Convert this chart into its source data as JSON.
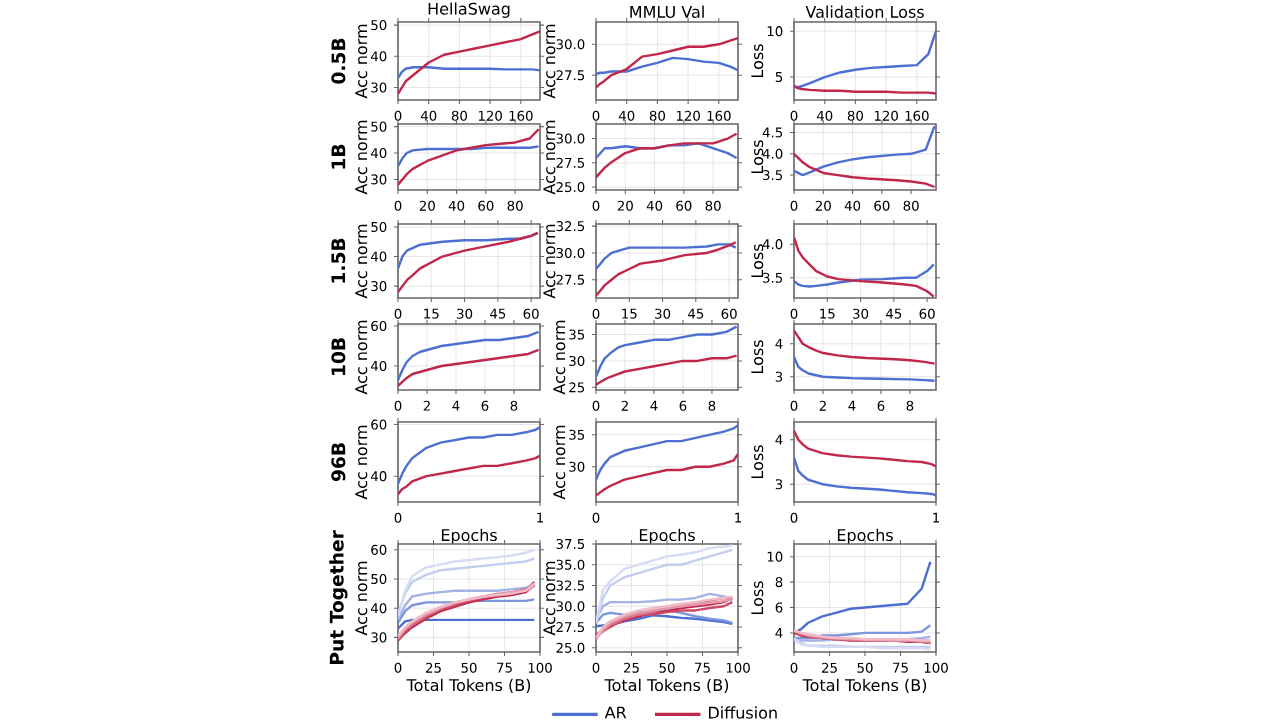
{
  "chart_data": [
    {
      "type": "line",
      "title": "HellaSwag",
      "ylabel": "Acc norm",
      "annotations": [
        "0.5B"
      ],
      "grid": true,
      "xlim": [
        0,
        185
      ],
      "xticks": [
        0,
        40,
        80,
        120,
        160
      ],
      "ylim": [
        26,
        51
      ],
      "yticks": [
        30,
        40,
        50
      ],
      "x": [
        0,
        5,
        10,
        20,
        40,
        60,
        80,
        100,
        120,
        140,
        160,
        175,
        185
      ],
      "series": [
        {
          "color": "#4c6fd1",
          "values": [
            33,
            35,
            36,
            36.5,
            36.5,
            36,
            36,
            36,
            36,
            35.8,
            35.8,
            35.8,
            35.5
          ]
        },
        {
          "color": "#c1274a",
          "values": [
            28,
            30,
            32,
            34,
            38,
            40.5,
            41.5,
            42.5,
            43.5,
            44.5,
            45.5,
            47,
            48
          ]
        }
      ]
    },
    {
      "type": "line",
      "title": "MMLU Val",
      "ylabel": "Acc norm",
      "grid": true,
      "xlim": [
        0,
        185
      ],
      "xticks": [
        0,
        40,
        80,
        120,
        160
      ],
      "ylim": [
        25.5,
        31.8
      ],
      "yticks": [
        27.5,
        {
          "value": 30,
          "label": "30.0"
        }
      ],
      "x": [
        0,
        5,
        10,
        20,
        40,
        60,
        80,
        100,
        120,
        140,
        160,
        175,
        185
      ],
      "series": [
        {
          "color": "#4c6fd1",
          "values": [
            27.6,
            27.7,
            27.7,
            27.8,
            27.8,
            28.2,
            28.5,
            28.9,
            28.8,
            28.6,
            28.5,
            28.2,
            27.9
          ]
        },
        {
          "color": "#c1274a",
          "values": [
            26.5,
            26.8,
            27.0,
            27.5,
            28.0,
            29.0,
            29.2,
            29.5,
            29.8,
            29.8,
            30.0,
            30.3,
            30.5
          ]
        }
      ]
    },
    {
      "type": "line",
      "title": "Validation Loss",
      "ylabel": "Loss",
      "grid": true,
      "xlim": [
        0,
        185
      ],
      "xticks": [
        0,
        40,
        80,
        120,
        160
      ],
      "ylim": [
        2.5,
        11
      ],
      "yticks": [
        5,
        10
      ],
      "x": [
        0,
        5,
        10,
        20,
        40,
        60,
        80,
        100,
        120,
        140,
        160,
        175,
        185
      ],
      "series": [
        {
          "color": "#4c6fd1",
          "values": [
            4.0,
            3.9,
            4.0,
            4.3,
            5.0,
            5.5,
            5.8,
            6.0,
            6.1,
            6.2,
            6.3,
            7.5,
            10.0
          ]
        },
        {
          "color": "#c1274a",
          "values": [
            4.0,
            3.8,
            3.7,
            3.6,
            3.5,
            3.5,
            3.4,
            3.4,
            3.4,
            3.3,
            3.3,
            3.3,
            3.2
          ]
        }
      ]
    },
    {
      "type": "line",
      "ylabel": "Acc norm",
      "annotations": [
        "1B"
      ],
      "grid": true,
      "xlim": [
        0,
        97
      ],
      "xticks": [
        0,
        20,
        40,
        60,
        80
      ],
      "ylim": [
        26,
        51
      ],
      "yticks": [
        30,
        40,
        50
      ],
      "x": [
        0,
        3,
        6,
        10,
        20,
        30,
        40,
        50,
        60,
        70,
        80,
        90,
        96
      ],
      "series": [
        {
          "color": "#4c6fd1",
          "values": [
            35,
            38,
            40,
            41,
            41.5,
            41.5,
            41.5,
            41.5,
            42,
            42,
            42,
            42,
            42.5
          ]
        },
        {
          "color": "#c1274a",
          "values": [
            28,
            30,
            32,
            34,
            37,
            39,
            41,
            42,
            43,
            43.5,
            44,
            45.5,
            49
          ]
        }
      ]
    },
    {
      "type": "line",
      "ylabel": "Acc norm",
      "grid": true,
      "xlim": [
        0,
        97
      ],
      "xticks": [
        0,
        20,
        40,
        60,
        80
      ],
      "ylim": [
        24.7,
        31.5
      ],
      "yticks": [
        {
          "value": 25,
          "label": "25.0"
        },
        27.5,
        {
          "value": 30,
          "label": "30.0"
        }
      ],
      "x": [
        0,
        3,
        6,
        10,
        20,
        30,
        40,
        50,
        60,
        70,
        80,
        90,
        96
      ],
      "series": [
        {
          "color": "#4c6fd1",
          "values": [
            28,
            28.5,
            29,
            29,
            29.2,
            29,
            29,
            29.3,
            29.3,
            29.5,
            29,
            28.5,
            28
          ]
        },
        {
          "color": "#c1274a",
          "values": [
            26,
            26.5,
            27,
            27.5,
            28.5,
            29,
            29,
            29.3,
            29.5,
            29.5,
            29.5,
            30,
            30.5
          ]
        }
      ]
    },
    {
      "type": "line",
      "ylabel": "Loss",
      "grid": true,
      "xlim": [
        0,
        97
      ],
      "xticks": [
        0,
        20,
        40,
        60,
        80
      ],
      "ylim": [
        3.15,
        4.7
      ],
      "yticks": [
        3.5,
        {
          "value": 4,
          "label": "4.0"
        },
        4.5
      ],
      "x": [
        0,
        3,
        6,
        10,
        20,
        30,
        40,
        50,
        60,
        70,
        80,
        90,
        96
      ],
      "series": [
        {
          "color": "#4c6fd1",
          "values": [
            3.6,
            3.55,
            3.5,
            3.55,
            3.7,
            3.8,
            3.87,
            3.92,
            3.95,
            3.98,
            4.0,
            4.1,
            4.65
          ]
        },
        {
          "color": "#c1274a",
          "values": [
            4.0,
            3.9,
            3.8,
            3.7,
            3.55,
            3.5,
            3.45,
            3.42,
            3.4,
            3.38,
            3.35,
            3.3,
            3.22
          ]
        }
      ]
    },
    {
      "type": "line",
      "ylabel": "Acc norm",
      "annotations": [
        "1.5B"
      ],
      "grid": true,
      "xlim": [
        0,
        64
      ],
      "xticks": [
        0,
        15,
        30,
        45,
        60
      ],
      "ylim": [
        26,
        51
      ],
      "yticks": [
        30,
        40,
        50
      ],
      "x": [
        0,
        2,
        4,
        7,
        10,
        15,
        20,
        30,
        40,
        50,
        55,
        60,
        63
      ],
      "series": [
        {
          "color": "#4c6fd1",
          "values": [
            36,
            40,
            42,
            43,
            44,
            44.5,
            45,
            45.5,
            45.5,
            46,
            46,
            47,
            48
          ]
        },
        {
          "color": "#c1274a",
          "values": [
            28,
            30,
            32,
            34,
            36,
            38,
            40,
            42,
            43.5,
            45,
            46,
            47,
            48
          ]
        }
      ]
    },
    {
      "type": "line",
      "ylabel": "Acc norm",
      "grid": true,
      "xlim": [
        0,
        64
      ],
      "xticks": [
        0,
        15,
        30,
        45,
        60
      ],
      "ylim": [
        25.8,
        32.7
      ],
      "yticks": [
        27.5,
        {
          "value": 30,
          "label": "30.0"
        },
        32.5
      ],
      "x": [
        0,
        2,
        4,
        7,
        10,
        15,
        20,
        30,
        40,
        50,
        55,
        60,
        63
      ],
      "series": [
        {
          "color": "#4c6fd1",
          "values": [
            28.5,
            29,
            29.5,
            30,
            30.2,
            30.5,
            30.5,
            30.5,
            30.5,
            30.6,
            30.8,
            30.8,
            30.5
          ]
        },
        {
          "color": "#c1274a",
          "values": [
            26,
            26.5,
            27,
            27.5,
            28,
            28.5,
            29,
            29.3,
            29.8,
            30,
            30.3,
            30.7,
            31
          ]
        }
      ]
    },
    {
      "type": "line",
      "ylabel": "Loss",
      "grid": true,
      "xlim": [
        0,
        64
      ],
      "xticks": [
        0,
        15,
        30,
        45,
        60
      ],
      "ylim": [
        3.2,
        4.3
      ],
      "yticks": [
        3.5,
        {
          "value": 4,
          "label": "4.0"
        }
      ],
      "x": [
        0,
        2,
        4,
        7,
        10,
        15,
        20,
        30,
        40,
        50,
        55,
        60,
        63
      ],
      "series": [
        {
          "color": "#4c6fd1",
          "values": [
            3.45,
            3.4,
            3.38,
            3.37,
            3.38,
            3.4,
            3.43,
            3.47,
            3.48,
            3.5,
            3.5,
            3.6,
            3.7
          ]
        },
        {
          "color": "#c1274a",
          "values": [
            4.1,
            3.9,
            3.8,
            3.7,
            3.6,
            3.52,
            3.48,
            3.45,
            3.43,
            3.4,
            3.38,
            3.3,
            3.22
          ]
        }
      ]
    },
    {
      "type": "line",
      "ylabel": "Acc norm",
      "annotations": [
        "10B"
      ],
      "grid": true,
      "xlim": [
        0,
        9.8
      ],
      "xticks": [
        0,
        2,
        4,
        6,
        8
      ],
      "ylim": [
        28,
        61
      ],
      "yticks": [
        40,
        60
      ],
      "x": [
        0,
        0.3,
        0.6,
        1,
        1.5,
        2,
        3,
        4,
        5,
        6,
        7,
        8,
        9,
        9.7
      ],
      "series": [
        {
          "color": "#4c6fd1",
          "values": [
            33,
            38,
            42,
            45,
            47,
            48,
            50,
            51,
            52,
            53,
            53,
            54,
            55,
            57
          ]
        },
        {
          "color": "#c1274a",
          "values": [
            30,
            32,
            34,
            36,
            37,
            38,
            40,
            41,
            42,
            43,
            44,
            45,
            46,
            48
          ]
        }
      ]
    },
    {
      "type": "line",
      "ylabel": "Acc norm",
      "grid": true,
      "xlim": [
        0,
        9.8
      ],
      "xticks": [
        0,
        2,
        4,
        6,
        8
      ],
      "ylim": [
        24.5,
        37
      ],
      "yticks": [
        25,
        30,
        35
      ],
      "x": [
        0,
        0.3,
        0.6,
        1,
        1.5,
        2,
        3,
        4,
        5,
        6,
        7,
        8,
        9,
        9.7
      ],
      "series": [
        {
          "color": "#4c6fd1",
          "values": [
            27,
            29,
            30.5,
            31.5,
            32.5,
            33,
            33.5,
            34,
            34,
            34.5,
            35,
            35,
            35.5,
            36.5
          ]
        },
        {
          "color": "#c1274a",
          "values": [
            25.5,
            26,
            26.5,
            27,
            27.5,
            28,
            28.5,
            29,
            29.5,
            30,
            30,
            30.5,
            30.5,
            31
          ]
        }
      ]
    },
    {
      "type": "line",
      "ylabel": "Loss",
      "grid": true,
      "xlim": [
        0,
        9.8
      ],
      "xticks": [
        0,
        2,
        4,
        6,
        8
      ],
      "ylim": [
        2.6,
        4.6
      ],
      "yticks": [
        3,
        4
      ],
      "x": [
        0,
        0.3,
        0.6,
        1,
        1.5,
        2,
        3,
        4,
        5,
        6,
        7,
        8,
        9,
        9.7
      ],
      "series": [
        {
          "color": "#4c6fd1",
          "values": [
            3.6,
            3.3,
            3.2,
            3.1,
            3.05,
            3.0,
            2.98,
            2.96,
            2.95,
            2.94,
            2.93,
            2.92,
            2.9,
            2.88
          ]
        },
        {
          "color": "#c1274a",
          "values": [
            4.4,
            4.2,
            4.0,
            3.9,
            3.8,
            3.72,
            3.65,
            3.6,
            3.57,
            3.55,
            3.53,
            3.5,
            3.45,
            3.4
          ]
        }
      ]
    },
    {
      "type": "line",
      "xlabel": "Epochs",
      "ylabel": "Acc norm",
      "annotations": [
        "96B"
      ],
      "grid": true,
      "xlim": [
        0,
        1
      ],
      "xticks": [
        0,
        1
      ],
      "ylim": [
        30,
        61
      ],
      "yticks": [
        40,
        60
      ],
      "x": [
        0,
        0.03,
        0.06,
        0.1,
        0.15,
        0.2,
        0.3,
        0.4,
        0.5,
        0.6,
        0.7,
        0.8,
        0.9,
        0.97,
        1
      ],
      "series": [
        {
          "color": "#4c6fd1",
          "values": [
            37,
            41,
            44,
            47,
            49,
            51,
            53,
            54,
            55,
            55,
            56,
            56,
            57,
            58,
            59
          ]
        },
        {
          "color": "#c1274a",
          "values": [
            33,
            35,
            36,
            38,
            39,
            40,
            41,
            42,
            43,
            44,
            44,
            45,
            46,
            47,
            48
          ]
        }
      ]
    },
    {
      "type": "line",
      "xlabel": "Epochs",
      "ylabel": "Acc norm",
      "grid": true,
      "xlim": [
        0,
        1
      ],
      "xticks": [
        0,
        1
      ],
      "ylim": [
        24.5,
        37
      ],
      "yticks": [
        30,
        35
      ],
      "x": [
        0,
        0.03,
        0.06,
        0.1,
        0.15,
        0.2,
        0.3,
        0.4,
        0.5,
        0.6,
        0.7,
        0.8,
        0.9,
        0.97,
        1
      ],
      "series": [
        {
          "color": "#4c6fd1",
          "values": [
            28,
            29.5,
            30.5,
            31.5,
            32,
            32.5,
            33,
            33.5,
            34,
            34,
            34.5,
            35,
            35.5,
            36,
            36.5
          ]
        },
        {
          "color": "#c1274a",
          "values": [
            25.5,
            26,
            26.5,
            27,
            27.5,
            28,
            28.5,
            29,
            29.5,
            29.5,
            30,
            30,
            30.5,
            31,
            32
          ]
        }
      ]
    },
    {
      "type": "line",
      "xlabel": "Epochs",
      "ylabel": "Loss",
      "grid": true,
      "xlim": [
        0,
        1
      ],
      "xticks": [
        0,
        1
      ],
      "ylim": [
        2.6,
        4.4
      ],
      "yticks": [
        3,
        4
      ],
      "x": [
        0,
        0.03,
        0.06,
        0.1,
        0.15,
        0.2,
        0.3,
        0.4,
        0.5,
        0.6,
        0.7,
        0.8,
        0.9,
        0.97,
        1
      ],
      "series": [
        {
          "color": "#4c6fd1",
          "values": [
            3.6,
            3.3,
            3.2,
            3.1,
            3.05,
            3.0,
            2.95,
            2.92,
            2.9,
            2.88,
            2.85,
            2.82,
            2.8,
            2.78,
            2.75
          ]
        },
        {
          "color": "#c1274a",
          "values": [
            4.2,
            4.0,
            3.9,
            3.8,
            3.75,
            3.7,
            3.65,
            3.62,
            3.6,
            3.58,
            3.55,
            3.52,
            3.5,
            3.45,
            3.4
          ]
        }
      ]
    },
    {
      "type": "line",
      "xlabel": "Total Tokens (B)",
      "ylabel": "Acc norm",
      "annotations": [
        "Put Together"
      ],
      "grid": true,
      "xlim": [
        0,
        100
      ],
      "xticks": [
        0,
        25,
        50,
        75,
        100
      ],
      "ylim": [
        25,
        62
      ],
      "yticks": [
        30,
        40,
        50,
        60
      ],
      "x": [
        0,
        5,
        10,
        20,
        30,
        40,
        50,
        60,
        70,
        80,
        90,
        96
      ],
      "series": [
        {
          "color": "#4c6fd1",
          "values": [
            33,
            35.5,
            36,
            36,
            36,
            36,
            36,
            36,
            36,
            36,
            36,
            36
          ]
        },
        {
          "color": "#7d95dc",
          "values": [
            35,
            39,
            41,
            42,
            42,
            42,
            42.5,
            42.5,
            42.5,
            42.5,
            42.5,
            43
          ]
        },
        {
          "color": "#a3b3e6",
          "values": [
            36,
            41,
            44,
            45,
            45.5,
            46,
            46,
            46,
            46,
            46.5,
            47,
            48
          ]
        },
        {
          "color": "#c3cdef",
          "values": [
            38,
            45,
            49,
            51.5,
            53,
            53.5,
            54,
            54.5,
            55,
            55.5,
            56,
            57
          ]
        },
        {
          "color": "#d5dcf3",
          "values": [
            37,
            46,
            51,
            54,
            55,
            56,
            56.5,
            57,
            57.5,
            58,
            59,
            60
          ]
        },
        {
          "color": "#c1274a",
          "values": [
            29,
            31.5,
            33.5,
            36.5,
            39,
            40.5,
            42,
            43,
            44,
            44.5,
            45.5,
            48
          ]
        },
        {
          "color": "#cc4a66",
          "values": [
            29,
            32,
            34,
            37,
            39.5,
            41,
            42.5,
            43.5,
            44.5,
            45,
            46,
            49
          ]
        },
        {
          "color": "#d87088",
          "values": [
            29.5,
            32.5,
            34.5,
            37.5,
            40,
            41.5,
            43,
            44,
            44.5,
            45.5,
            46.5,
            48
          ]
        },
        {
          "color": "#e498aa",
          "values": [
            30,
            33,
            35,
            38,
            40,
            42,
            43,
            44,
            45,
            45.5,
            46,
            47.5
          ]
        },
        {
          "color": "#efbcc8",
          "values": [
            30.5,
            33.5,
            35.5,
            38.5,
            40.5,
            42,
            43,
            44,
            44.5,
            45,
            46,
            48.5
          ]
        }
      ]
    },
    {
      "type": "line",
      "xlabel": "Total Tokens (B)",
      "ylabel": "Acc norm",
      "legend": "bottom",
      "grid": true,
      "xlim": [
        0,
        100
      ],
      "xticks": [
        0,
        25,
        50,
        75,
        100
      ],
      "ylim": [
        24.5,
        37.5
      ],
      "yticks": [
        {
          "value": 25,
          "label": "25.0"
        },
        27.5,
        {
          "value": 30,
          "label": "30.0"
        },
        32.5,
        {
          "value": 35,
          "label": "35.0"
        },
        37.5
      ],
      "x": [
        0,
        5,
        10,
        20,
        30,
        40,
        50,
        60,
        70,
        80,
        90,
        96
      ],
      "series": [
        {
          "name": "AR",
          "color": "#4c6fd1",
          "values": [
            27.6,
            27.7,
            27.8,
            28.2,
            28.5,
            28.9,
            28.8,
            28.6,
            28.5,
            28.3,
            28.1,
            27.9
          ]
        },
        {
          "color": "#7d95dc",
          "values": [
            28,
            29,
            29.2,
            29,
            29.3,
            29.3,
            29.5,
            29.2,
            28.8,
            28.5,
            28.3,
            28
          ]
        },
        {
          "color": "#a3b3e6",
          "values": [
            28.5,
            30,
            30.5,
            30.5,
            30.5,
            30.6,
            30.8,
            30.8,
            31,
            31.5,
            31.2,
            30.8
          ]
        },
        {
          "color": "#c3cdef",
          "values": [
            28,
            31,
            32.5,
            33.5,
            34,
            34.5,
            35,
            35,
            35.5,
            36,
            36.5,
            36.8
          ]
        },
        {
          "color": "#d5dcf3",
          "values": [
            28,
            32,
            33,
            34.5,
            35,
            35.5,
            36,
            36.2,
            36.5,
            37,
            37.2,
            37.3
          ]
        },
        {
          "name": "Diffusion",
          "color": "#c1274a",
          "values": [
            26.5,
            27.2,
            27.6,
            28.3,
            28.8,
            29.2,
            29.4,
            29.8,
            30,
            30.2,
            30.5,
            31
          ]
        },
        {
          "color": "#cc4a66",
          "values": [
            26.5,
            27,
            27.5,
            28.5,
            29,
            29,
            29.3,
            29.5,
            29.5,
            29.8,
            30,
            30.5
          ]
        },
        {
          "color": "#d87088",
          "values": [
            26.3,
            27,
            27.8,
            28.5,
            29,
            29.3,
            29.8,
            30,
            30.3,
            30.7,
            31,
            30.8
          ]
        },
        {
          "color": "#e498aa",
          "values": [
            26,
            27.2,
            28,
            28.8,
            29.2,
            29.5,
            29.8,
            30,
            30.2,
            30.4,
            30.6,
            30.9
          ]
        },
        {
          "color": "#efbcc8",
          "values": [
            26.2,
            27.5,
            28.2,
            29,
            29.5,
            29.8,
            30,
            30.3,
            30.5,
            30.8,
            31,
            31.2
          ]
        }
      ]
    },
    {
      "type": "line",
      "xlabel": "Total Tokens (B)",
      "ylabel": "Loss",
      "grid": true,
      "xlim": [
        0,
        100
      ],
      "xticks": [
        0,
        25,
        50,
        75,
        100
      ],
      "ylim": [
        2.5,
        11
      ],
      "yticks": [
        4,
        6,
        8,
        10
      ],
      "x": [
        0,
        5,
        10,
        20,
        30,
        40,
        50,
        60,
        70,
        80,
        90,
        96
      ],
      "series": [
        {
          "color": "#4c6fd1",
          "values": [
            4,
            4.3,
            4.8,
            5.3,
            5.6,
            5.9,
            6.0,
            6.1,
            6.2,
            6.3,
            7.5,
            9.6
          ]
        },
        {
          "color": "#7d95dc",
          "values": [
            3.6,
            3.6,
            3.6,
            3.8,
            3.8,
            3.9,
            4.0,
            4.0,
            4.0,
            4.0,
            4.1,
            4.6
          ]
        },
        {
          "color": "#a3b3e6",
          "values": [
            3.4,
            3.4,
            3.4,
            3.4,
            3.5,
            3.5,
            3.5,
            3.5,
            3.5,
            3.5,
            3.6,
            3.7
          ]
        },
        {
          "color": "#c3cdef",
          "values": [
            3.6,
            3.2,
            3.0,
            3.0,
            3.0,
            2.9,
            2.9,
            2.9,
            2.9,
            2.9,
            2.9,
            2.9
          ]
        },
        {
          "color": "#d5dcf3",
          "values": [
            3.5,
            3.1,
            3.0,
            2.9,
            2.9,
            2.9,
            2.9,
            2.8,
            2.8,
            2.8,
            2.8,
            2.7
          ]
        },
        {
          "color": "#c1274a",
          "values": [
            4.0,
            3.8,
            3.7,
            3.6,
            3.5,
            3.4,
            3.4,
            3.4,
            3.4,
            3.3,
            3.3,
            3.2
          ]
        },
        {
          "color": "#cc4a66",
          "values": [
            4.1,
            3.9,
            3.7,
            3.6,
            3.5,
            3.5,
            3.4,
            3.4,
            3.4,
            3.4,
            3.3,
            3.2
          ]
        },
        {
          "color": "#d87088",
          "values": [
            4.1,
            3.9,
            3.8,
            3.6,
            3.5,
            3.5,
            3.4,
            3.4,
            3.4,
            3.4,
            3.3,
            3.2
          ]
        },
        {
          "color": "#e498aa",
          "values": [
            4.2,
            4.0,
            3.8,
            3.7,
            3.6,
            3.5,
            3.5,
            3.5,
            3.4,
            3.4,
            3.4,
            3.4
          ]
        },
        {
          "color": "#efbcc8",
          "values": [
            4.2,
            4.0,
            3.9,
            3.7,
            3.6,
            3.6,
            3.5,
            3.5,
            3.5,
            3.5,
            3.4,
            3.4
          ]
        }
      ]
    }
  ]
}
